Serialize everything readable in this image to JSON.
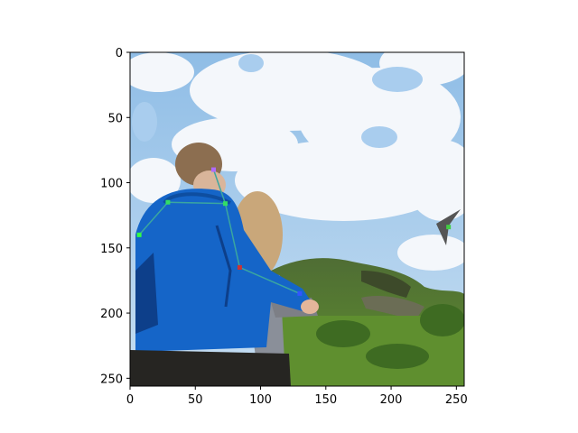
{
  "axes": {
    "xlim": [
      0,
      256
    ],
    "ylim": [
      256,
      0
    ],
    "x_ticks": [
      0,
      50,
      100,
      150,
      200,
      250
    ],
    "y_ticks": [
      0,
      50,
      100,
      150,
      200,
      250
    ],
    "x_tick_labels": [
      "0",
      "50",
      "100",
      "150",
      "200",
      "250"
    ],
    "y_tick_labels": [
      "0",
      "50",
      "100",
      "150",
      "200",
      "250"
    ],
    "y_inverted": true
  },
  "scene": {
    "description_colors": {
      "sky": "#9cc6ea",
      "cloud": "#f4f7fb",
      "grass": "#4c7a2c",
      "hill_dark": "#3d4a2a",
      "jacket": "#1565c8",
      "jacket_dark": "#0d3f8a",
      "hair_boy": "#8c6e50",
      "hair_girl": "#c9a77a",
      "pants": "#262522",
      "kite": "#555555"
    }
  },
  "keypoints": [
    {
      "x": 64,
      "y": 90,
      "color": "#b06aff"
    },
    {
      "x": 29,
      "y": 115,
      "color": "#33dd66"
    },
    {
      "x": 73,
      "y": 116,
      "color": "#33dd66"
    },
    {
      "x": 7,
      "y": 140,
      "color": "#33ff44"
    },
    {
      "x": 84,
      "y": 165,
      "color": "#cc3333"
    },
    {
      "x": 130,
      "y": 185,
      "color": "#3355ff"
    },
    {
      "x": 244,
      "y": 134,
      "color": "#44cc44"
    }
  ],
  "skeleton": [
    [
      0,
      2
    ],
    [
      1,
      2
    ],
    [
      1,
      3
    ],
    [
      2,
      4
    ],
    [
      4,
      5
    ]
  ]
}
